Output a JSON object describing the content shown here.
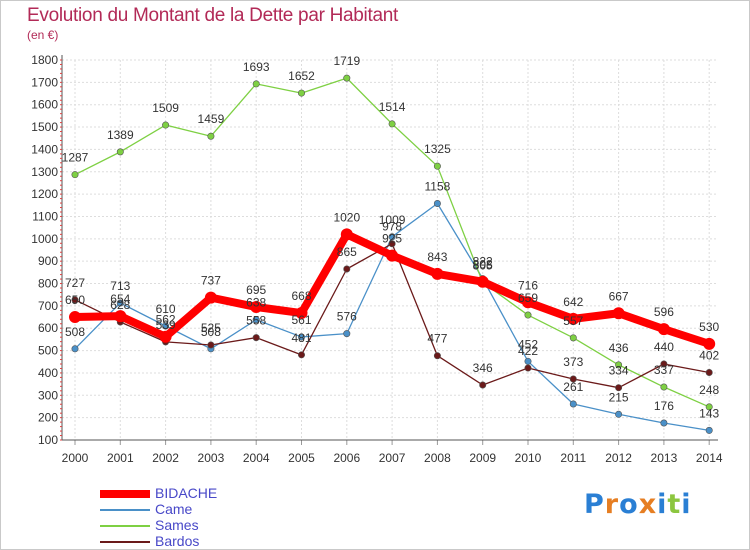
{
  "title": "Evolution du Montant de la Dette par Habitant",
  "subtitle": "(en €)",
  "logo": "Proxiti",
  "chart_data": {
    "type": "line",
    "title": "Evolution du Montant de la Dette par Habitant",
    "subtitle": "(en €)",
    "x": [
      "2000",
      "2001",
      "2002",
      "2003",
      "2004",
      "2005",
      "2006",
      "2007",
      "2008",
      "2009",
      "2010",
      "2011",
      "2012",
      "2013",
      "2014"
    ],
    "ylim": [
      100,
      1800
    ],
    "yticks": [
      100,
      200,
      300,
      400,
      500,
      600,
      700,
      800,
      900,
      1000,
      1100,
      1200,
      1300,
      1400,
      1500,
      1600,
      1700,
      1800
    ],
    "grid": true,
    "legend_position": "bottom-left",
    "series": [
      {
        "name": "BIDACHE",
        "color": "#ff0000",
        "values": [
          650,
          654,
          562,
          737,
          695,
          668,
          1020,
          925,
          843,
          808,
          716,
          642,
          667,
          596,
          530
        ]
      },
      {
        "name": "Came",
        "color": "#4a90c8",
        "values": [
          508,
          713,
          610,
          508,
          638,
          561,
          576,
          1009,
          1158,
          822,
          452,
          261,
          215,
          176,
          143
        ]
      },
      {
        "name": "Sames",
        "color": "#7ed043",
        "values": [
          1287,
          1389,
          1509,
          1459,
          1693,
          1652,
          1719,
          1514,
          1325,
          805,
          659,
          557,
          436,
          337,
          248
        ]
      },
      {
        "name": "Bardos",
        "color": "#6b1a1a",
        "values": [
          727,
          628,
          539,
          525,
          558,
          481,
          865,
          978,
          477,
          346,
          422,
          373,
          334,
          440,
          402
        ]
      }
    ]
  }
}
